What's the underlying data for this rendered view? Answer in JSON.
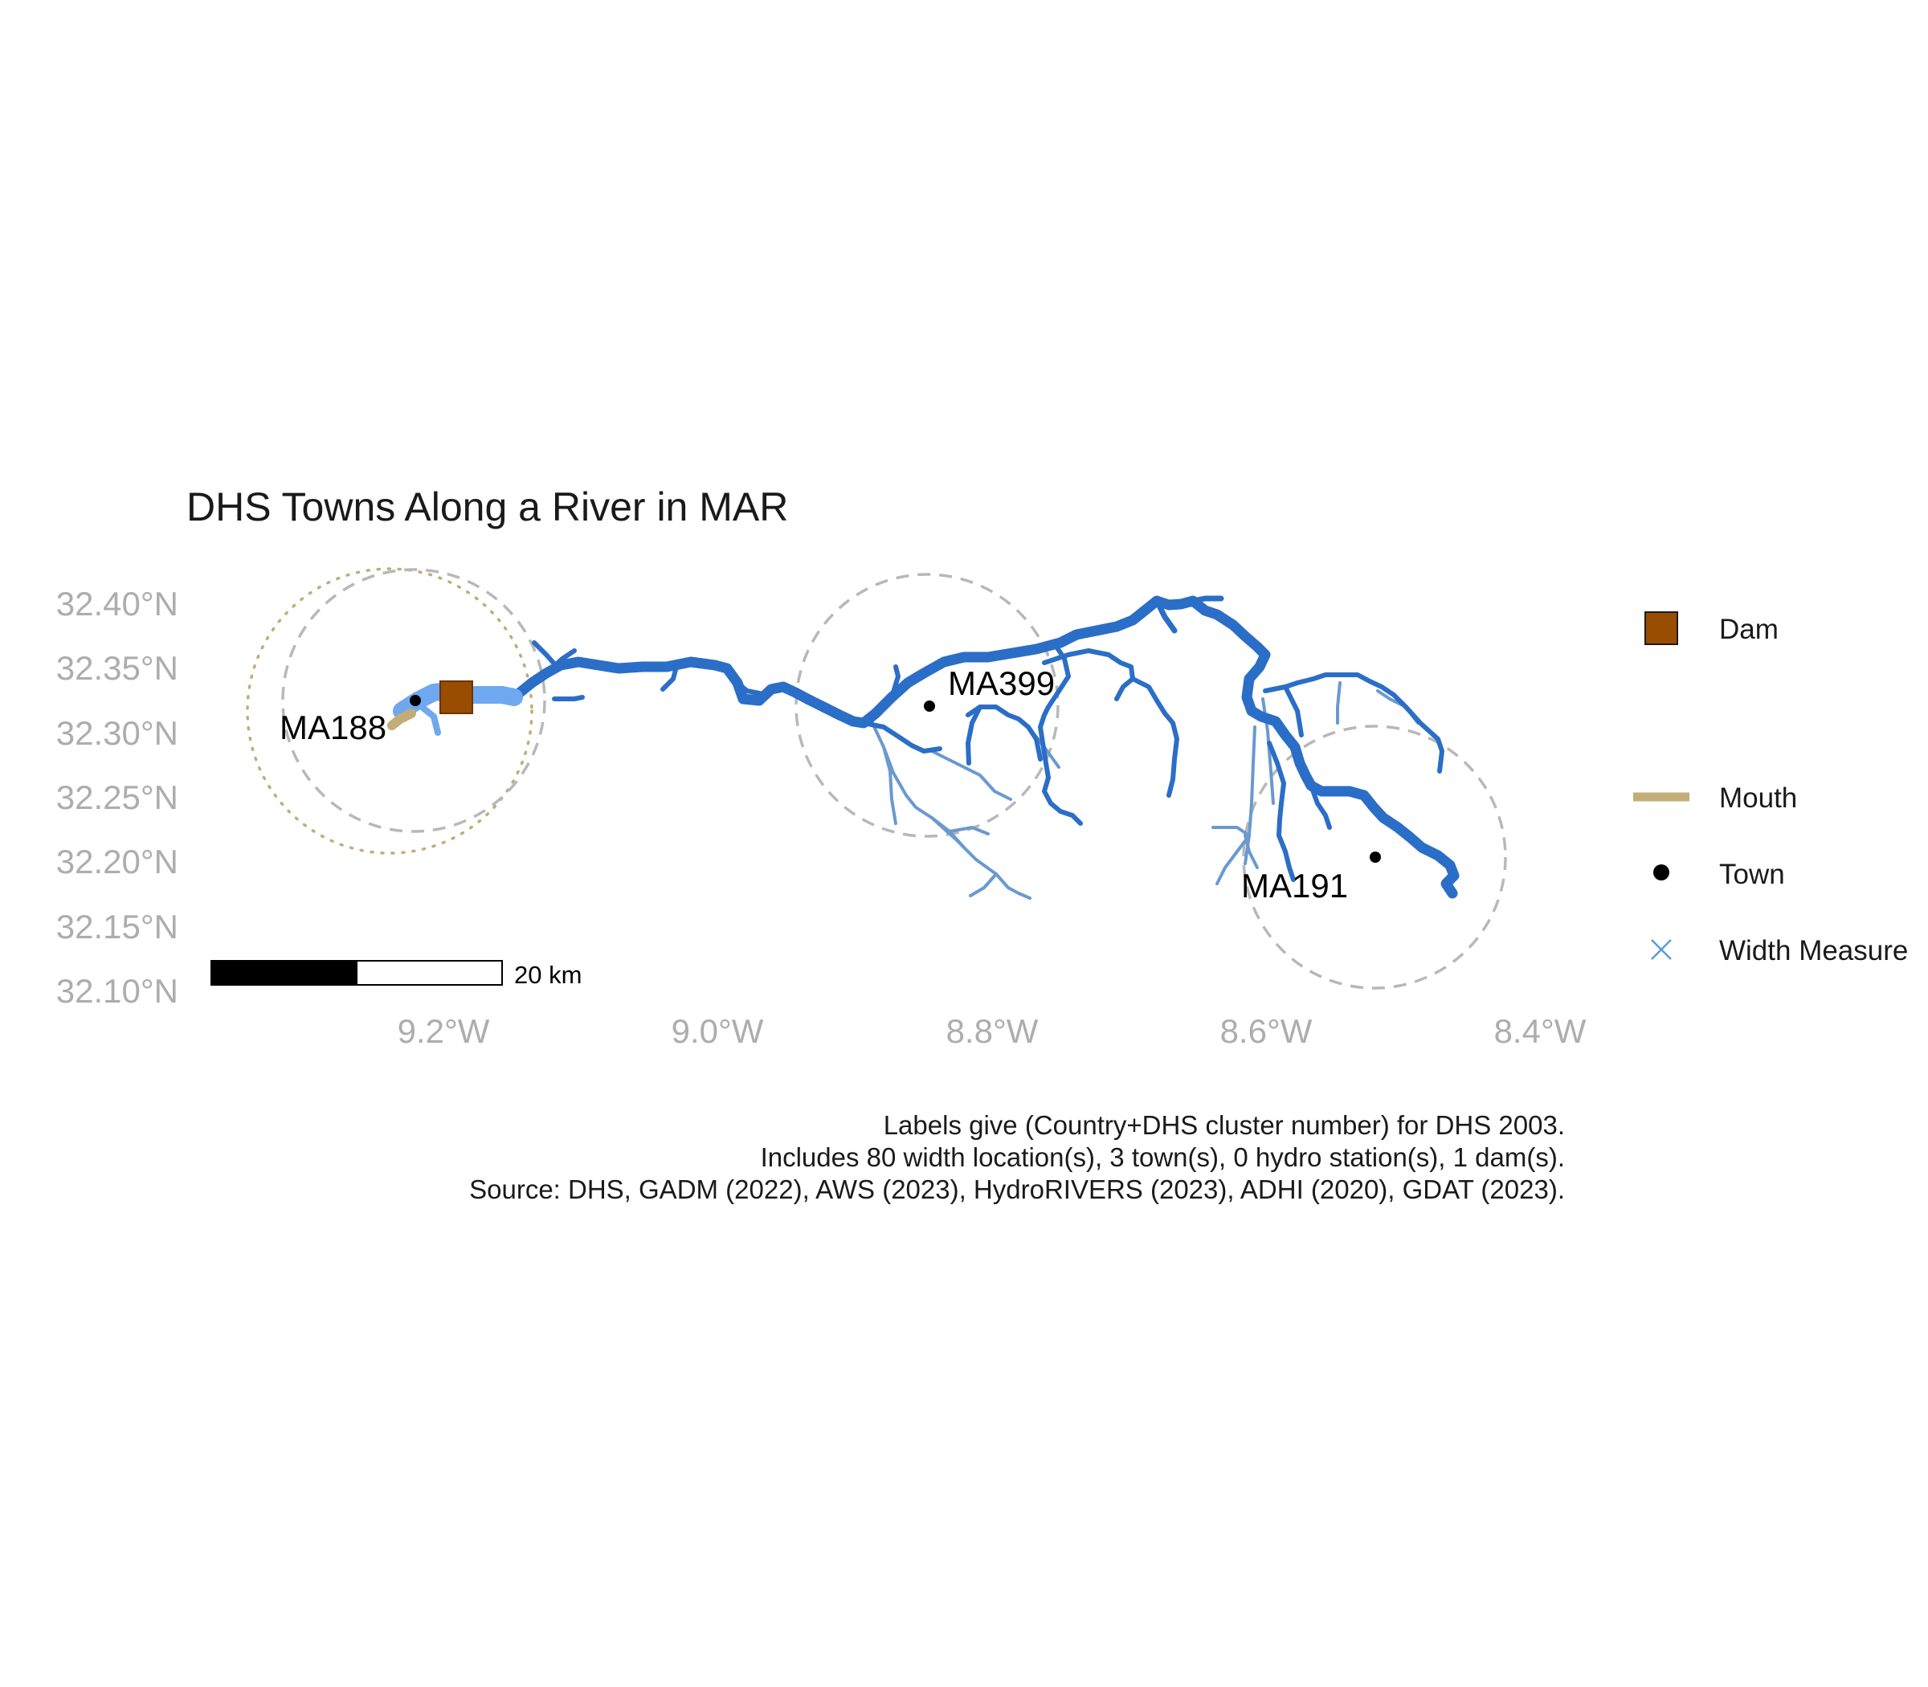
{
  "title": "DHS Towns Along a River in MAR",
  "axes": {
    "y_ticks": [
      "32.40°N",
      "32.35°N",
      "32.30°N",
      "32.25°N",
      "32.20°N",
      "32.15°N",
      "32.10°N"
    ],
    "x_ticks": [
      "9.2°W",
      "9.0°W",
      "8.8°W",
      "8.6°W",
      "8.4°W"
    ]
  },
  "towns": [
    {
      "label": "MA188",
      "lon": -9.22,
      "lat": 32.327
    },
    {
      "label": "MA399",
      "lon": -8.84,
      "lat": 32.322
    },
    {
      "label": "MA191",
      "lon": -8.52,
      "lat": 32.205
    }
  ],
  "dam": {
    "lon": -9.19,
    "lat": 32.331
  },
  "scale_bar": {
    "label": "20 km"
  },
  "legend": {
    "items": [
      {
        "label": "Dam",
        "symbol": "square",
        "color": "#994d00"
      },
      {
        "label": "Mouth",
        "symbol": "line",
        "color": "#c2ad78"
      },
      {
        "label": "Town",
        "symbol": "dot",
        "color": "#000000"
      },
      {
        "label": "Width Measure",
        "symbol": "cross",
        "color": "#5b9bd5"
      }
    ]
  },
  "caption": {
    "line1": "Labels give (Country+DHS cluster number) for DHS 2003.",
    "line2": "Includes 80 width location(s), 3 town(s), 0 hydro station(s), 1 dam(s).",
    "line3": "Source: DHS, GADM (2022), AWS (2023), HydroRIVERS (2023), ADHI (2020), GDAT (2023)."
  },
  "colors": {
    "main_river": "#2b6ec7",
    "tributary": "#6a99cf",
    "lower_reach": "#6fa8f0",
    "buffer_circle": "#b8b8b8",
    "mouth_circle": "#c2ad78",
    "dam": "#994d00"
  }
}
